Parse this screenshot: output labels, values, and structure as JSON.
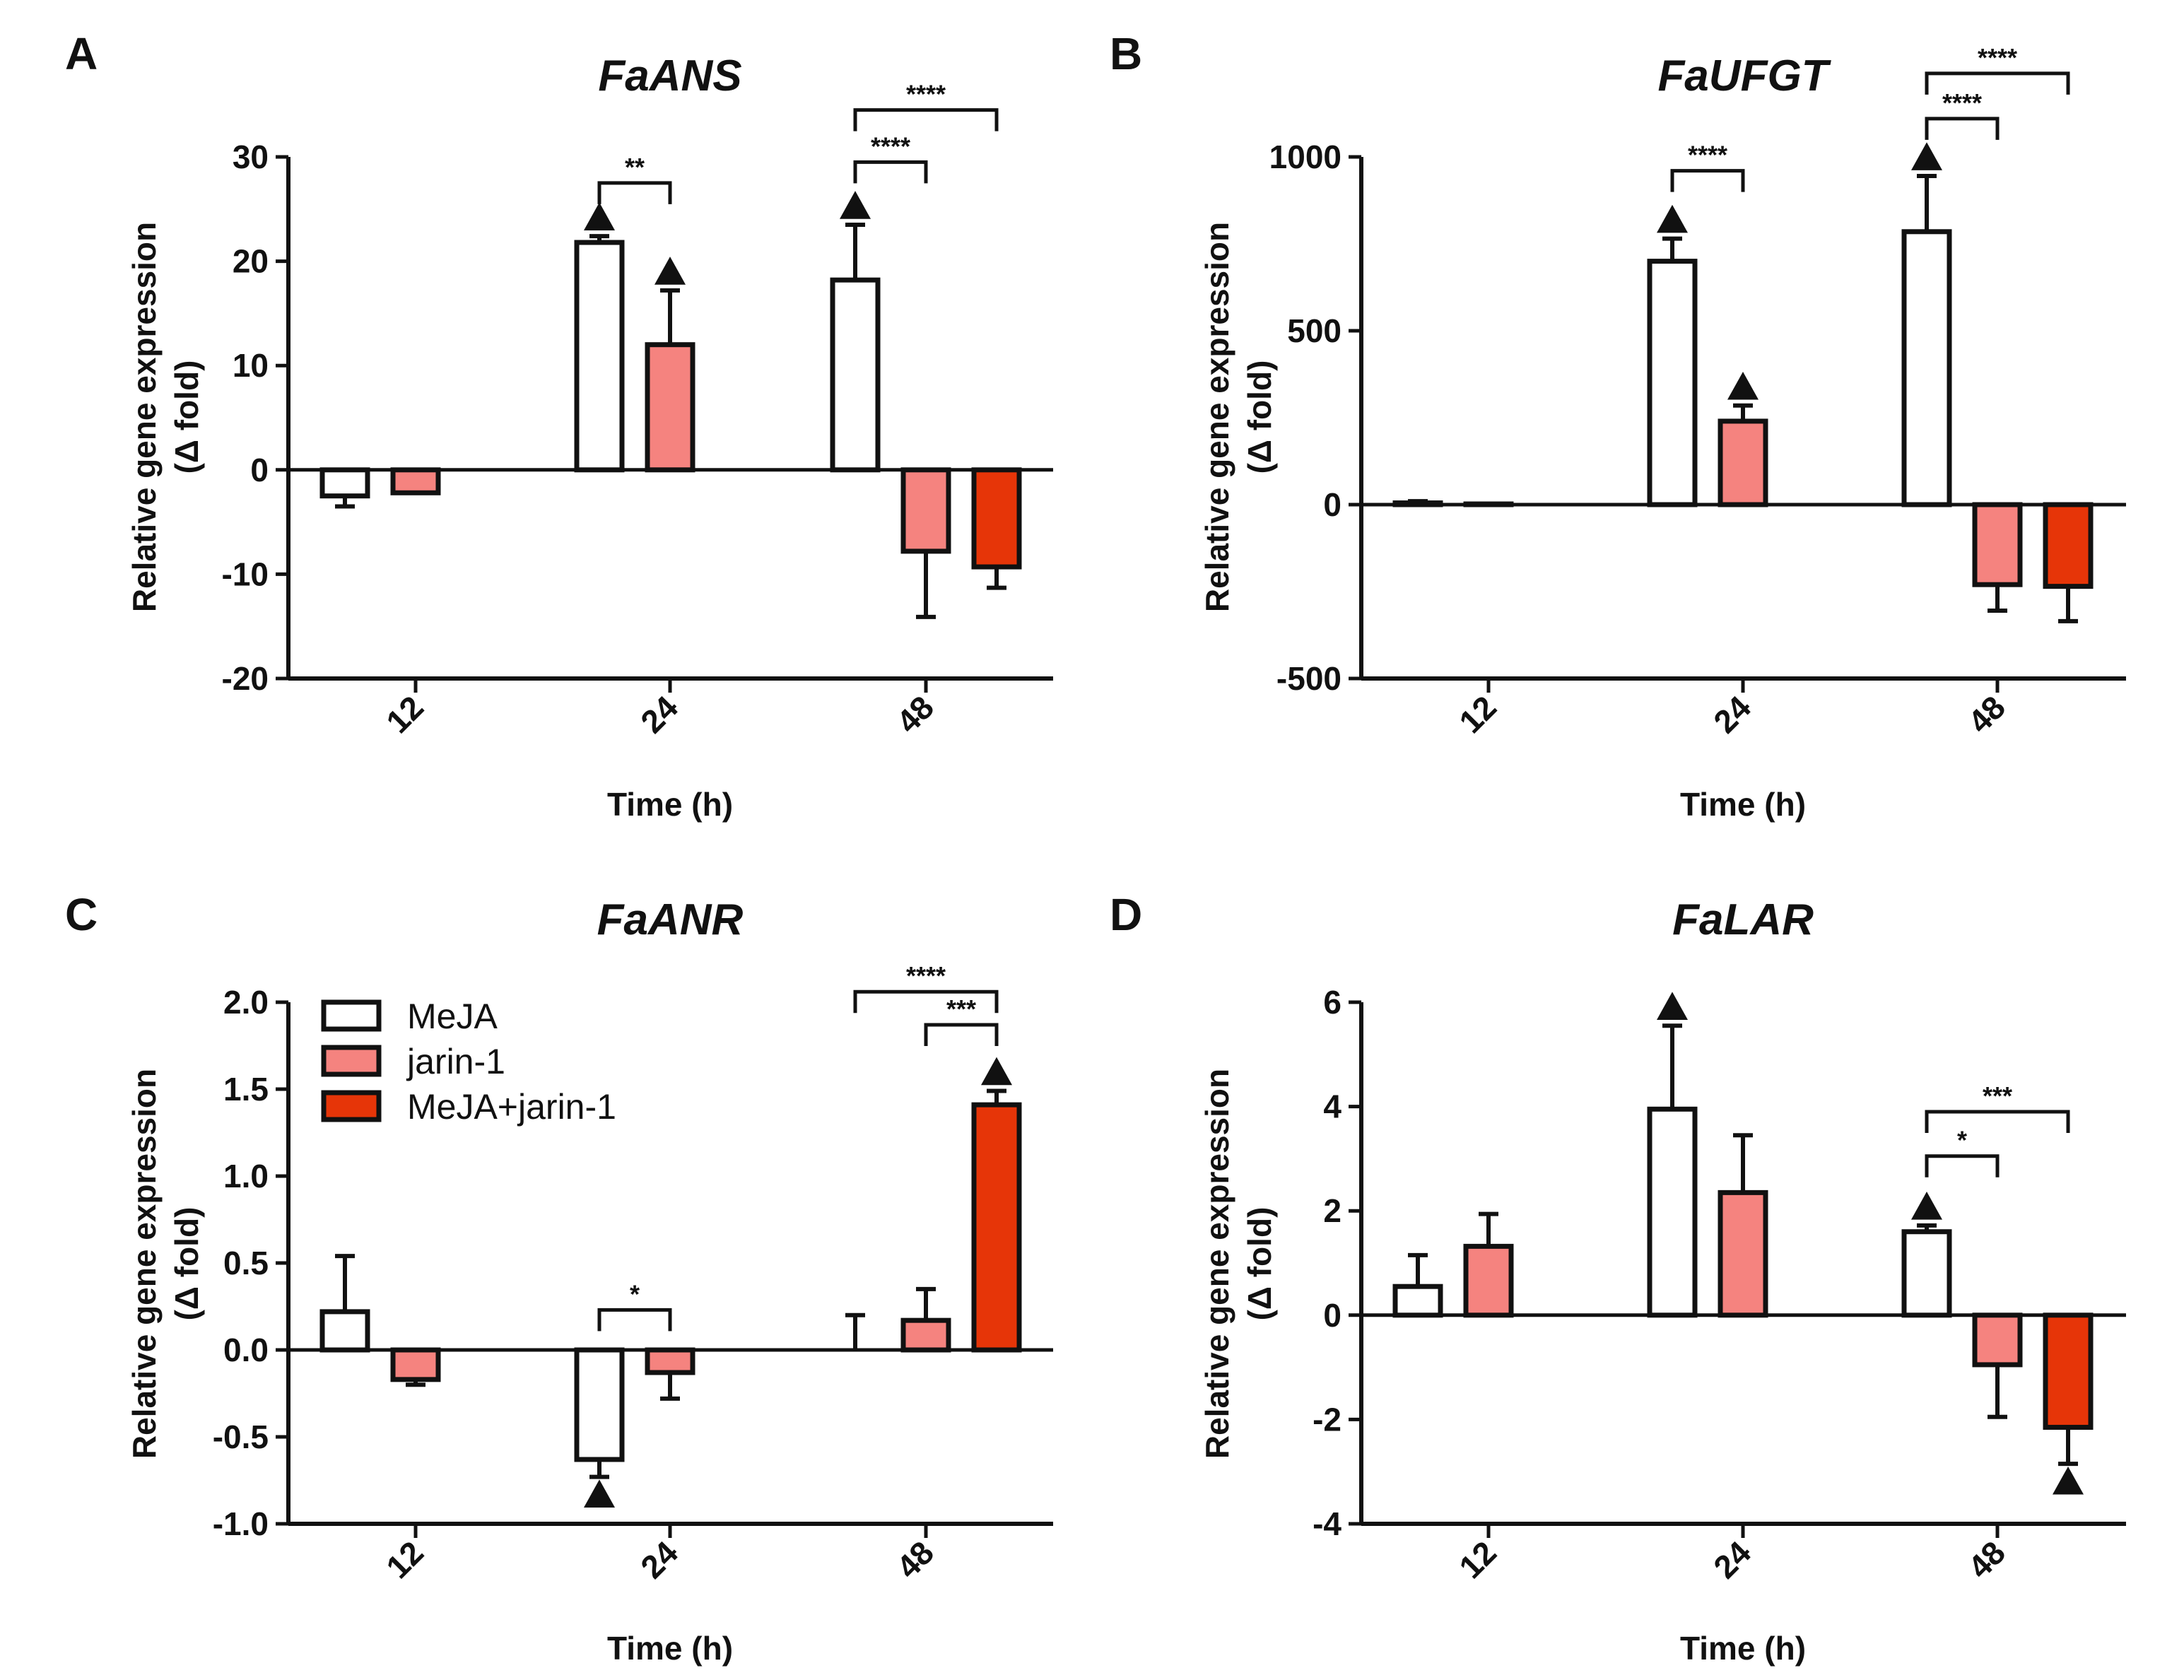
{
  "series_styles": [
    {
      "name": "MeJA",
      "fill": "#ffffff"
    },
    {
      "name": "jarin-1",
      "fill": "#f5837f"
    },
    {
      "name": "MeJA+jarin-1",
      "fill": "#e63508"
    }
  ],
  "legend": {
    "items": [
      {
        "label": "MeJA",
        "color": "#ffffff"
      },
      {
        "label": "jarin-1",
        "color": "#f5837f"
      },
      {
        "label": "MeJA+jarin-1",
        "color": "#e63508"
      }
    ]
  },
  "chart_data": [
    {
      "type": "bar",
      "panel": "A",
      "title": "FaANS",
      "xlabel": "Time (h)",
      "ylabel": "Relative gene expression",
      "ylabel2": "(Δ fold)",
      "categories": [
        "12",
        "24",
        "48"
      ],
      "ylim": [
        -20,
        30
      ],
      "yticks": [
        30,
        20,
        10,
        0,
        -10,
        -20
      ],
      "series": [
        {
          "name": "MeJA",
          "values": [
            -2.5,
            21.8,
            18.2
          ],
          "errors": [
            1.0,
            0.6,
            5.3
          ]
        },
        {
          "name": "jarin-1",
          "values": [
            -2.2,
            12.0,
            -7.8
          ],
          "errors": [
            0,
            5.2,
            6.3
          ]
        },
        {
          "name": "MeJA+jarin-1",
          "values": [
            null,
            null,
            -9.3
          ],
          "errors": [
            0,
            0,
            2.0
          ]
        }
      ],
      "triangles": [
        {
          "cat": 1,
          "series": 0,
          "pos": "up"
        },
        {
          "cat": 1,
          "series": 1,
          "pos": "up"
        },
        {
          "cat": 2,
          "series": 0,
          "pos": "up"
        }
      ],
      "sig": [
        {
          "cat": 1,
          "from": 0,
          "to": 1,
          "level": 27.5,
          "label": "**"
        },
        {
          "cat": 2,
          "from": 0,
          "to": 1,
          "level": 29.5,
          "label": "****"
        },
        {
          "cat": 2,
          "from": 0,
          "to": 2,
          "level": 34.5,
          "label": "****"
        }
      ]
    },
    {
      "type": "bar",
      "panel": "B",
      "title": "FaUFGT",
      "xlabel": "Time (h)",
      "ylabel": "Relative gene expression",
      "ylabel2": "(Δ fold)",
      "categories": [
        "12",
        "24",
        "48"
      ],
      "ylim": [
        -500,
        1000
      ],
      "yticks": [
        1000,
        500,
        0,
        -500
      ],
      "series": [
        {
          "name": "MeJA",
          "values": [
            5,
            700,
            785
          ],
          "errors": [
            5,
            65,
            160
          ]
        },
        {
          "name": "jarin-1",
          "values": [
            2,
            240,
            -230
          ],
          "errors": [
            0,
            45,
            75
          ]
        },
        {
          "name": "MeJA+jarin-1",
          "values": [
            null,
            null,
            -235
          ],
          "errors": [
            0,
            0,
            100
          ]
        }
      ],
      "triangles": [
        {
          "cat": 1,
          "series": 0,
          "pos": "up"
        },
        {
          "cat": 1,
          "series": 1,
          "pos": "up"
        },
        {
          "cat": 2,
          "series": 0,
          "pos": "up"
        }
      ],
      "sig": [
        {
          "cat": 1,
          "from": 0,
          "to": 1,
          "level": 960,
          "label": "****"
        },
        {
          "cat": 2,
          "from": 0,
          "to": 1,
          "level": 1110,
          "label": "****"
        },
        {
          "cat": 2,
          "from": 0,
          "to": 2,
          "level": 1240,
          "label": "****"
        }
      ]
    },
    {
      "type": "bar",
      "panel": "C",
      "title": "FaANR",
      "xlabel": "Time (h)",
      "ylabel": "Relative gene expression",
      "ylabel2": "(Δ fold)",
      "categories": [
        "12",
        "24",
        "48"
      ],
      "ylim": [
        -1.0,
        2.0
      ],
      "yticks": [
        "2.0",
        "1.5",
        "1.0",
        "0.5",
        "0.0",
        "-0.5",
        "-1.0"
      ],
      "series": [
        {
          "name": "MeJA",
          "values": [
            0.22,
            -0.63,
            0.0
          ],
          "errors": [
            0.32,
            0.1,
            0.2
          ]
        },
        {
          "name": "jarin-1",
          "values": [
            -0.17,
            -0.13,
            0.17
          ],
          "errors": [
            0.03,
            0.15,
            0.18
          ]
        },
        {
          "name": "MeJA+jarin-1",
          "values": [
            null,
            null,
            1.41
          ],
          "errors": [
            0,
            0,
            0.08
          ]
        }
      ],
      "triangles": [
        {
          "cat": 1,
          "series": 0,
          "pos": "down"
        },
        {
          "cat": 2,
          "series": 2,
          "pos": "up"
        }
      ],
      "sig": [
        {
          "cat": 1,
          "from": 0,
          "to": 1,
          "level": 0.23,
          "label": "*"
        },
        {
          "cat": 2,
          "from": 1,
          "to": 2,
          "level": 1.87,
          "label": "***"
        },
        {
          "cat": 2,
          "from": 0,
          "to": 2,
          "level": 2.06,
          "label": "****"
        }
      ]
    },
    {
      "type": "bar",
      "panel": "D",
      "title": "FaLAR",
      "xlabel": "Time (h)",
      "ylabel": "Relative gene expression",
      "ylabel2": "(Δ fold)",
      "categories": [
        "12",
        "24",
        "48"
      ],
      "ylim": [
        -4,
        6
      ],
      "yticks": [
        6,
        4,
        2,
        0,
        -2,
        -4
      ],
      "series": [
        {
          "name": "MeJA",
          "values": [
            0.55,
            3.95,
            1.6
          ],
          "errors": [
            0.6,
            1.6,
            0.12
          ]
        },
        {
          "name": "jarin-1",
          "values": [
            1.32,
            2.35,
            -0.95
          ],
          "errors": [
            0.62,
            1.1,
            1.0
          ]
        },
        {
          "name": "MeJA+jarin-1",
          "values": [
            null,
            null,
            -2.15
          ],
          "errors": [
            0,
            0,
            0.7
          ]
        }
      ],
      "triangles": [
        {
          "cat": 1,
          "series": 0,
          "pos": "up"
        },
        {
          "cat": 2,
          "series": 0,
          "pos": "up"
        },
        {
          "cat": 2,
          "series": 2,
          "pos": "down"
        }
      ],
      "sig": [
        {
          "cat": 2,
          "from": 0,
          "to": 1,
          "level": 3.05,
          "label": "*"
        },
        {
          "cat": 2,
          "from": 0,
          "to": 2,
          "level": 3.9,
          "label": "***"
        }
      ]
    }
  ]
}
